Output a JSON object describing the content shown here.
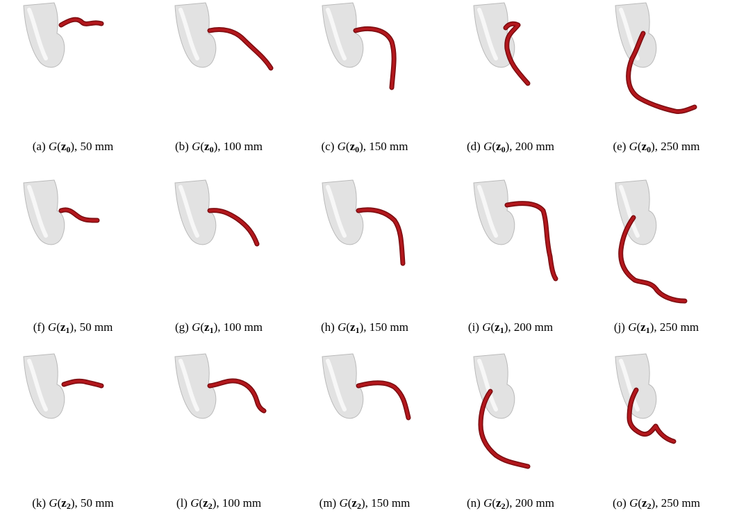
{
  "figure": {
    "panels": [
      {
        "label": "(a)",
        "z": "0",
        "length": "50 mm"
      },
      {
        "label": "(b)",
        "z": "0",
        "length": "100 mm"
      },
      {
        "label": "(c)",
        "z": "0",
        "length": "150 mm"
      },
      {
        "label": "(d)",
        "z": "0",
        "length": "200 mm"
      },
      {
        "label": "(e)",
        "z": "0",
        "length": "250 mm"
      },
      {
        "label": "(f)",
        "z": "1",
        "length": "50 mm"
      },
      {
        "label": "(g)",
        "z": "1",
        "length": "100 mm"
      },
      {
        "label": "(h)",
        "z": "1",
        "length": "150 mm"
      },
      {
        "label": "(i)",
        "z": "1",
        "length": "200 mm"
      },
      {
        "label": "(j)",
        "z": "1",
        "length": "250 mm"
      },
      {
        "label": "(k)",
        "z": "2",
        "length": "50 mm"
      },
      {
        "label": "(l)",
        "z": "2",
        "length": "100 mm"
      },
      {
        "label": "(m)",
        "z": "2",
        "length": "150 mm"
      },
      {
        "label": "(n)",
        "z": "2",
        "length": "200 mm"
      },
      {
        "label": "(o)",
        "z": "2",
        "length": "250 mm"
      }
    ],
    "colors": {
      "vessel": "#b3171c",
      "vessel_dark": "#7a0c10",
      "heart": "#e2e2e2",
      "heart_edge": "#b9b9b9"
    }
  }
}
